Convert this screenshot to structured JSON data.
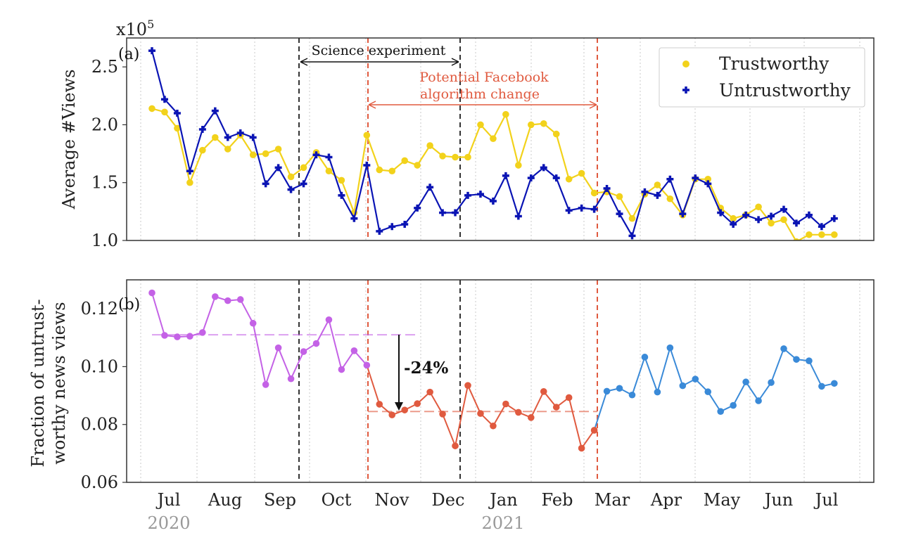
{
  "chart_data": [
    {
      "panel": "(a)",
      "type": "line",
      "ylabel": "Average #Views",
      "yscale_label": "x10",
      "yscale_exp": "5",
      "ylim": [
        1.0,
        2.75
      ],
      "yticks": [
        1.0,
        1.5,
        2.0,
        2.5
      ],
      "ytick_labels": [
        "1.0",
        "1.5",
        "2.0",
        "2.5"
      ],
      "legend_position": "top-right",
      "series": [
        {
          "name": "Trustworthy",
          "color": "#f2d21b",
          "marker": "circle",
          "values": [
            2.14,
            2.11,
            1.97,
            1.5,
            1.78,
            1.89,
            1.79,
            1.91,
            1.74,
            1.75,
            1.79,
            1.55,
            1.63,
            1.76,
            1.6,
            1.52,
            1.24,
            1.91,
            1.61,
            1.6,
            1.69,
            1.65,
            1.82,
            1.73,
            1.72,
            1.72,
            2.0,
            1.88,
            2.09,
            1.65,
            2.0,
            2.01,
            1.92,
            1.53,
            1.58,
            1.41,
            1.42,
            1.38,
            1.19,
            1.4,
            1.48,
            1.36,
            1.22,
            1.53,
            1.53,
            1.28,
            1.19,
            1.22,
            1.29,
            1.15,
            1.18,
            0.99,
            1.05,
            1.05,
            1.05
          ]
        },
        {
          "name": "Untrustworthy",
          "color": "#0a14b4",
          "marker": "plus",
          "values": [
            2.64,
            2.22,
            2.1,
            1.6,
            1.96,
            2.12,
            1.89,
            1.93,
            1.89,
            1.49,
            1.63,
            1.44,
            1.49,
            1.74,
            1.72,
            1.39,
            1.19,
            1.65,
            1.08,
            1.12,
            1.14,
            1.28,
            1.46,
            1.24,
            1.24,
            1.39,
            1.4,
            1.34,
            1.56,
            1.21,
            1.54,
            1.63,
            1.54,
            1.26,
            1.28,
            1.27,
            1.45,
            1.23,
            1.04,
            1.42,
            1.39,
            1.53,
            1.23,
            1.54,
            1.49,
            1.24,
            1.14,
            1.22,
            1.18,
            1.21,
            1.27,
            1.15,
            1.22,
            1.12,
            1.19
          ]
        }
      ],
      "annotations": [
        {
          "text": "Science experiment",
          "color": "#111111"
        },
        {
          "text": "Potential Facebook",
          "color": "#e05a3f"
        },
        {
          "text": "algorithm change",
          "color": "#e05a3f"
        }
      ]
    },
    {
      "panel": "(b)",
      "type": "line",
      "ylabel": [
        "Fraction of untrust-",
        "worthy news views"
      ],
      "ylim": [
        0.06,
        0.13
      ],
      "yticks": [
        0.06,
        0.08,
        0.1,
        0.12
      ],
      "ytick_labels": [
        "0.06",
        "0.08",
        "0.10",
        "0.12"
      ],
      "series": [
        {
          "color_before": "#c462e6",
          "color_during": "#e05a3f",
          "color_after": "#3a8ad8",
          "values": [
            0.1255,
            0.1108,
            0.1103,
            0.1105,
            0.1118,
            0.1242,
            0.1228,
            0.1232,
            0.115,
            0.0938,
            0.1065,
            0.0958,
            0.1052,
            0.108,
            0.1162,
            0.099,
            0.1055,
            0.1005,
            0.087,
            0.0833,
            0.085,
            0.0872,
            0.0912,
            0.0836,
            0.0726,
            0.0935,
            0.0838,
            0.0795,
            0.0871,
            0.0842,
            0.0824,
            0.0914,
            0.086,
            0.0893,
            0.0718,
            0.078,
            0.0915,
            0.0925,
            0.0902,
            0.1033,
            0.0912,
            0.1065,
            0.0934,
            0.0957,
            0.0913,
            0.0845,
            0.0866,
            0.0947,
            0.0882,
            0.0945,
            0.1062,
            0.1025,
            0.102,
            0.0932,
            0.0942
          ]
        }
      ],
      "mean_before": 0.111,
      "mean_during": 0.0845,
      "change_label": "-24%"
    }
  ],
  "x_axis": {
    "months": [
      "Jul",
      "Aug",
      "Sep",
      "Oct",
      "Nov",
      "Dec",
      "Jan",
      "Feb",
      "Mar",
      "Apr",
      "May",
      "Jun",
      "Jul"
    ],
    "years": [
      "2020",
      "2021"
    ]
  }
}
